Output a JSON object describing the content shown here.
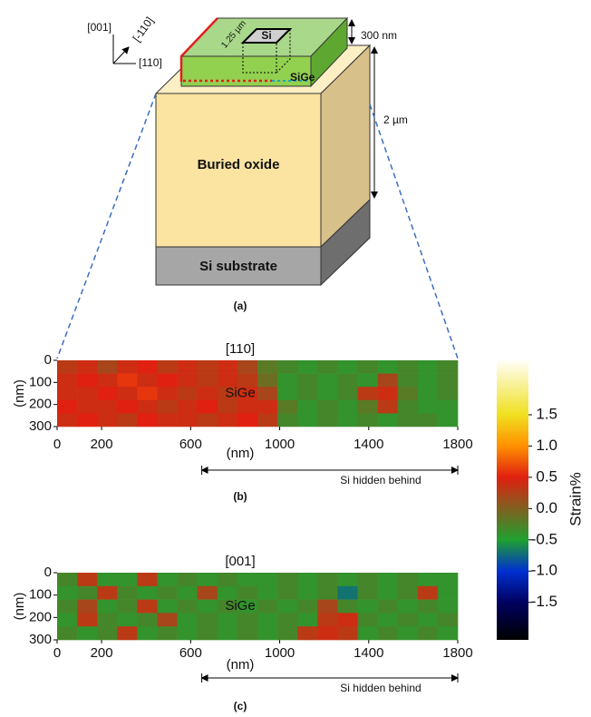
{
  "figure": {
    "schematic": {
      "directions": [
        "[001]",
        "[-110]",
        "[110]"
      ],
      "si_label": "Si",
      "si_width": "1.25 µm",
      "sige_label": "SiGe",
      "thickness_top": "300 nm",
      "thickness_box": "2 µm",
      "box_label": "Buried oxide",
      "substrate_label": "Si substrate",
      "caption": "(a)"
    },
    "panels": [
      {
        "type": "heatmap",
        "direction": "[110]",
        "label": "SiGe",
        "x_label": "(nm)",
        "y_label": "(nm)",
        "xlim": [
          0,
          1800
        ],
        "ylim": [
          0,
          300
        ],
        "xticks": [
          0,
          200,
          600,
          1000,
          1400,
          1800
        ],
        "yticks": [
          0,
          100,
          200,
          300
        ],
        "annotation": "Si hidden behind",
        "annotation_span": [
          650,
          1800
        ],
        "caption": "(b)",
        "values": [
          [
            0.3,
            0.4,
            0.2,
            0.4,
            0.5,
            0.3,
            0.4,
            0.3,
            0.4,
            0.2,
            -0.2,
            -0.3,
            -0.4,
            -0.3,
            -0.4,
            -0.3,
            -0.4,
            -0.3,
            -0.4,
            -0.3
          ],
          [
            0.4,
            0.5,
            0.4,
            0.6,
            0.4,
            0.5,
            0.4,
            0.3,
            0.4,
            0.3,
            -0.1,
            -0.4,
            -0.3,
            -0.4,
            -0.3,
            -0.4,
            0.2,
            -0.3,
            -0.4,
            -0.3
          ],
          [
            0.4,
            0.4,
            0.5,
            0.4,
            0.6,
            0.4,
            0.3,
            0.4,
            0.3,
            0.4,
            0.2,
            -0.4,
            -0.3,
            -0.4,
            -0.3,
            0.3,
            0.4,
            -0.2,
            -0.4,
            -0.3
          ],
          [
            0.5,
            0.4,
            0.4,
            0.5,
            0.4,
            0.3,
            0.4,
            0.5,
            0.3,
            0.4,
            0.4,
            -0.2,
            -0.4,
            -0.3,
            -0.4,
            -0.2,
            0.3,
            -0.3,
            -0.4,
            -0.4
          ],
          [
            0.4,
            0.5,
            0.4,
            0.3,
            0.5,
            0.4,
            0.4,
            0.3,
            0.4,
            0.5,
            0.3,
            -0.3,
            -0.4,
            -0.3,
            -0.4,
            -0.3,
            -0.4,
            -0.3,
            -0.3,
            -0.4
          ]
        ]
      },
      {
        "type": "heatmap",
        "direction": "[001]",
        "label": "SiGe",
        "x_label": "(nm)",
        "y_label": "(nm)",
        "xlim": [
          0,
          1800
        ],
        "ylim": [
          0,
          300
        ],
        "xticks": [
          0,
          200,
          600,
          1000,
          1400,
          1800
        ],
        "yticks": [
          0,
          100,
          200,
          300
        ],
        "annotation": "Si hidden behind",
        "annotation_span": [
          650,
          1800
        ],
        "caption": "(c)",
        "values": [
          [
            -0.3,
            0.3,
            -0.4,
            -0.4,
            0.3,
            -0.4,
            -0.3,
            -0.4,
            -0.3,
            -0.4,
            -0.4,
            -0.3,
            -0.4,
            -0.3,
            -0.4,
            -0.3,
            -0.4,
            -0.3,
            -0.4,
            -0.4
          ],
          [
            -0.4,
            -0.3,
            0.3,
            -0.3,
            -0.4,
            -0.3,
            -0.4,
            0.2,
            -0.4,
            -0.3,
            -0.4,
            -0.3,
            -0.4,
            -0.3,
            -0.7,
            -0.3,
            -0.4,
            -0.3,
            0.3,
            -0.4
          ],
          [
            -0.3,
            0.2,
            -0.4,
            -0.3,
            0.3,
            -0.4,
            -0.3,
            -0.4,
            -0.3,
            -0.4,
            -0.3,
            -0.4,
            -0.3,
            0.2,
            -0.3,
            -0.4,
            -0.3,
            -0.4,
            -0.3,
            -0.4
          ],
          [
            -0.4,
            0.3,
            -0.3,
            -0.4,
            -0.3,
            0.2,
            -0.4,
            -0.3,
            -0.4,
            -0.3,
            -0.4,
            -0.3,
            -0.4,
            0.3,
            0.4,
            -0.3,
            -0.4,
            -0.3,
            -0.4,
            -0.3
          ],
          [
            -0.3,
            -0.4,
            -0.3,
            0.3,
            -0.4,
            -0.3,
            -0.4,
            -0.3,
            -0.4,
            -0.3,
            -0.4,
            -0.3,
            0.3,
            0.4,
            0.3,
            -0.4,
            -0.3,
            -0.4,
            -0.3,
            -0.4
          ]
        ]
      }
    ],
    "colorbar": {
      "label": "Strain%",
      "lim": [
        -2.1,
        2.4
      ],
      "ticks": [
        1.5,
        {
          "value": 1,
          "label": "1.0"
        },
        0.5,
        {
          "value": 0,
          "label": "0.0"
        },
        -0.5,
        {
          "value": -1,
          "label": "-1.0"
        },
        -1.5
      ],
      "colormap": [
        {
          "at": -2.1,
          "color": "#000000"
        },
        {
          "at": -1.5,
          "color": "#000060"
        },
        {
          "at": -1,
          "color": "#0030d0"
        },
        {
          "at": -0.5,
          "color": "#20a030"
        },
        {
          "at": 0,
          "color": "#806020"
        },
        {
          "at": 0.5,
          "color": "#e02010"
        },
        {
          "at": 1,
          "color": "#ff9000"
        },
        {
          "at": 1.5,
          "color": "#f0e020"
        },
        {
          "at": 2.4,
          "color": "#ffffff"
        }
      ]
    }
  }
}
